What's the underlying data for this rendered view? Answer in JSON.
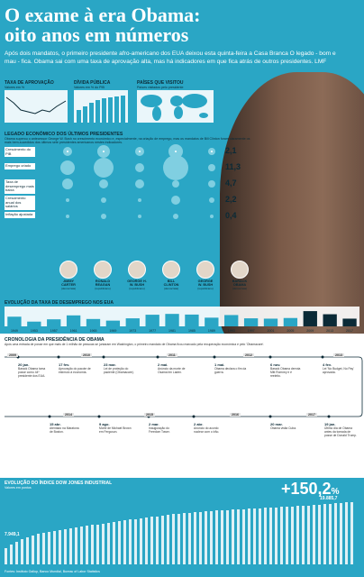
{
  "title_line1": "O exame à era Obama:",
  "title_line2": "oito anos em números",
  "intro": "Após dois mandatos, o primeiro presidente afro-americano dos EUA deixou esta quinta-feira a Casa Branca O legado - bom e mau - fica. Obama sai com uma taxa de aprovação alta, mas há indicadores em que fica atrás de outros presidentes. LMF",
  "colors": {
    "accent": "#2aa6c5",
    "dark": "#0b2a36",
    "bubble": "#8fd7e6"
  },
  "mini_charts": [
    {
      "title": "TAXA DE APROVAÇÃO",
      "subtitle": "Valores em %"
    },
    {
      "title": "DÍVIDA PÚBLICA",
      "subtitle": "Valores em % do PIB"
    },
    {
      "title": "PAÍSES QUE VISITOU",
      "subtitle": "Países visitados pelo presidente"
    }
  ],
  "econ": {
    "title": "LEGADO ECONÓMICO DOS ÚLTIMOS PRESIDENTES",
    "desc": "Obama superou o antecessor George W. Bush no crescimento económico e, especialmente, na criação de emprego, mas os mandatos de Bill Clinton foram claramente os mais bem-sucedidos dos últimos sete presidentes americanos nestes indicadores.",
    "rows": [
      "Crescimento do PIB",
      "Emprego criado",
      "Taxa de desemprego mais baixa",
      "Crescimento anual dos salários",
      "Inflação ajustada"
    ],
    "values": [
      "2,1",
      "11,3",
      "4,7",
      "2,2",
      "0,4"
    ],
    "presidents": [
      {
        "name": "JIMMY CARTER",
        "party": "(democrata)"
      },
      {
        "name": "RONALD REAGAN",
        "party": "(republicano)"
      },
      {
        "name": "GEORGE H. W. BUSH",
        "party": "(republicano)"
      },
      {
        "name": "BILL CLINTON",
        "party": "(democrata)"
      },
      {
        "name": "GEORGE W. BUSH",
        "party": "(republicano)"
      },
      {
        "name": "BARACK OBAMA",
        "party": "(democrata)"
      }
    ]
  },
  "timeline": {
    "title": "CRONOLOGIA DA PRESIDÊNCIA DE OBAMA",
    "subtitle": "Após uma entrada de posse em que mais de 1 milhão de pessoas se juntaram em Washington, o primeiro mandato de Obama ficou marcado pela recuperação económica e pelo 'Obamacare'.",
    "years_top": [
      "2009",
      "2010",
      "2011",
      "2012",
      "2013"
    ],
    "years_bottom": [
      "2014",
      "2015",
      "2016",
      "2017"
    ],
    "events_top": [
      {
        "date": "20 jan.",
        "text": "Barack Obama toma posse como 44º presidente dos EUA."
      },
      {
        "date": "17 fev.",
        "text": "Aprovação do pacote de estímulo à economia."
      },
      {
        "date": "23 mar.",
        "text": "Lei de proteção do paciente (Obamacare)."
      },
      {
        "date": "2 mai.",
        "text": "Anúncio da morte de Osama bin Laden."
      },
      {
        "date": "1 mai.",
        "text": "Obama declara o fim da guerra."
      },
      {
        "date": "6 nov.",
        "text": "Barack Obama derrota Mitt Romney e é reeleito."
      },
      {
        "date": "4 fev.",
        "text": "Lei 'No Budget, No Pay' aprovada."
      }
    ],
    "events_bottom": [
      {
        "date": "15 abr.",
        "text": "Atentado na Maratona de Boston."
      },
      {
        "date": "9 ago.",
        "text": "Morte de Michael Brown em Ferguson."
      },
      {
        "date": "2 mar.",
        "text": "Inauguração do Freedom Tower."
      },
      {
        "date": "2 abr.",
        "text": "Anúncio do acordo nuclear com o Irão."
      },
      {
        "date": "20 mar.",
        "text": "Obama visita Cuba."
      },
      {
        "date": "19 jan.",
        "text": "Último dia de Obama antes da tomada de posse de Donald Trump."
      }
    ]
  },
  "dow": {
    "title": "EVOLUÇÃO DO ÍNDICE DOW JONES INDUSTRIAL",
    "subtitle": "Valores em pontos",
    "change": "+150,2",
    "change_unit": "%",
    "start_value": "7.949,1",
    "end_value": "19.885,7"
  },
  "chart_data": {
    "type": "bar",
    "title": "EVOLUÇÃO DA TAXA DE DESEMPREGO NOS EUA",
    "legend": [
      "Barack Obama"
    ],
    "categories": [
      "1949",
      "1953",
      "1957",
      "1961",
      "1965",
      "1969",
      "1973",
      "1977",
      "1981",
      "1985",
      "1989",
      "1993",
      "1997",
      "2001",
      "2005",
      "2009",
      "2013",
      "2017"
    ],
    "values": [
      5.9,
      2.9,
      4.3,
      6.7,
      4.5,
      3.5,
      4.9,
      7.1,
      7.6,
      7.2,
      5.3,
      6.9,
      4.9,
      4.7,
      5.1,
      9.3,
      7.4,
      4.7
    ],
    "ylim": [
      0,
      11
    ]
  },
  "footer": "Fontes: Instituto Gallup, Banco Mundial, Bureau of Labor Statistics"
}
